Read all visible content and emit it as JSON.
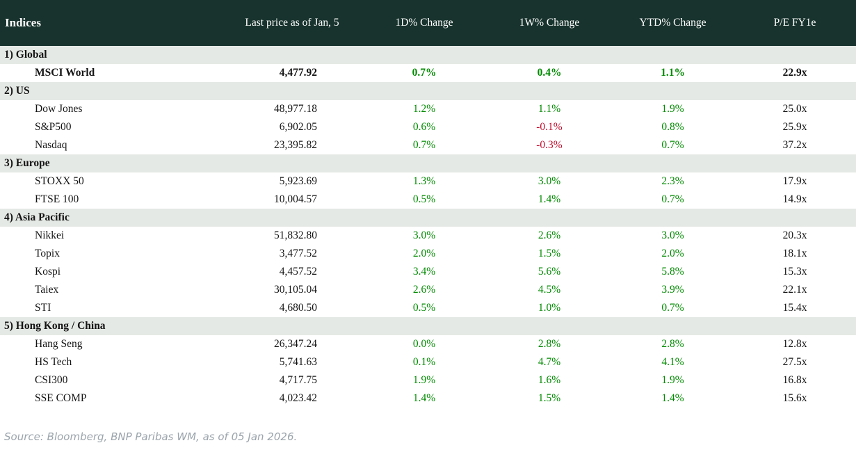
{
  "colors": {
    "header_bg": "#18332d",
    "section_bg": "#e5e9e5",
    "positive": "#008a00",
    "negative": "#c00d2d",
    "source_text": "#9ba4ac"
  },
  "footer": {
    "source": "Source: Bloomberg, BNP Paribas WM, as of 05 Jan 2026."
  },
  "chart_data": {
    "type": "table",
    "title": "Indices",
    "columns": [
      "Indices",
      "Last price as of Jan, 5",
      "1D% Change",
      "1W% Change",
      "YTD% Change",
      "P/E FY1e"
    ],
    "sections": [
      {
        "label": "1) Global",
        "rows": [
          {
            "name": "MSCI World",
            "price": "4,477.92",
            "d1": "0.7%",
            "w1": "0.4%",
            "ytd": "1.1%",
            "pe": "22.9x",
            "bold": true
          }
        ]
      },
      {
        "label": "2) US",
        "rows": [
          {
            "name": "Dow Jones",
            "price": "48,977.18",
            "d1": "1.2%",
            "w1": "1.1%",
            "ytd": "1.9%",
            "pe": "25.0x",
            "bold": false
          },
          {
            "name": "S&P500",
            "price": "6,902.05",
            "d1": "0.6%",
            "w1": "-0.1%",
            "ytd": "0.8%",
            "pe": "25.9x",
            "bold": false
          },
          {
            "name": "Nasdaq",
            "price": "23,395.82",
            "d1": "0.7%",
            "w1": "-0.3%",
            "ytd": "0.7%",
            "pe": "37.2x",
            "bold": false
          }
        ]
      },
      {
        "label": "3) Europe",
        "rows": [
          {
            "name": "STOXX 50",
            "price": "5,923.69",
            "d1": "1.3%",
            "w1": "3.0%",
            "ytd": "2.3%",
            "pe": "17.9x",
            "bold": false
          },
          {
            "name": "FTSE 100",
            "price": "10,004.57",
            "d1": "0.5%",
            "w1": "1.4%",
            "ytd": "0.7%",
            "pe": "14.9x",
            "bold": false
          }
        ]
      },
      {
        "label": "4) Asia Pacific",
        "rows": [
          {
            "name": "Nikkei",
            "price": "51,832.80",
            "d1": "3.0%",
            "w1": "2.6%",
            "ytd": "3.0%",
            "pe": "20.3x",
            "bold": false
          },
          {
            "name": "Topix",
            "price": "3,477.52",
            "d1": "2.0%",
            "w1": "1.5%",
            "ytd": "2.0%",
            "pe": "18.1x",
            "bold": false
          },
          {
            "name": "Kospi",
            "price": "4,457.52",
            "d1": "3.4%",
            "w1": "5.6%",
            "ytd": "5.8%",
            "pe": "15.3x",
            "bold": false
          },
          {
            "name": "Taiex",
            "price": "30,105.04",
            "d1": "2.6%",
            "w1": "4.5%",
            "ytd": "3.9%",
            "pe": "22.1x",
            "bold": false
          },
          {
            "name": "STI",
            "price": "4,680.50",
            "d1": "0.5%",
            "w1": "1.0%",
            "ytd": "0.7%",
            "pe": "15.4x",
            "bold": false
          }
        ]
      },
      {
        "label": "5) Hong Kong / China",
        "rows": [
          {
            "name": "Hang Seng",
            "price": "26,347.24",
            "d1": "0.0%",
            "w1": "2.8%",
            "ytd": "2.8%",
            "pe": "12.8x",
            "bold": false
          },
          {
            "name": "HS Tech",
            "price": "5,741.63",
            "d1": "0.1%",
            "w1": "4.7%",
            "ytd": "4.1%",
            "pe": "27.5x",
            "bold": false
          },
          {
            "name": "CSI300",
            "price": "4,717.75",
            "d1": "1.9%",
            "w1": "1.6%",
            "ytd": "1.9%",
            "pe": "16.8x",
            "bold": false
          },
          {
            "name": "SSE COMP",
            "price": "4,023.42",
            "d1": "1.4%",
            "w1": "1.5%",
            "ytd": "1.4%",
            "pe": "15.6x",
            "bold": false
          }
        ]
      }
    ]
  }
}
